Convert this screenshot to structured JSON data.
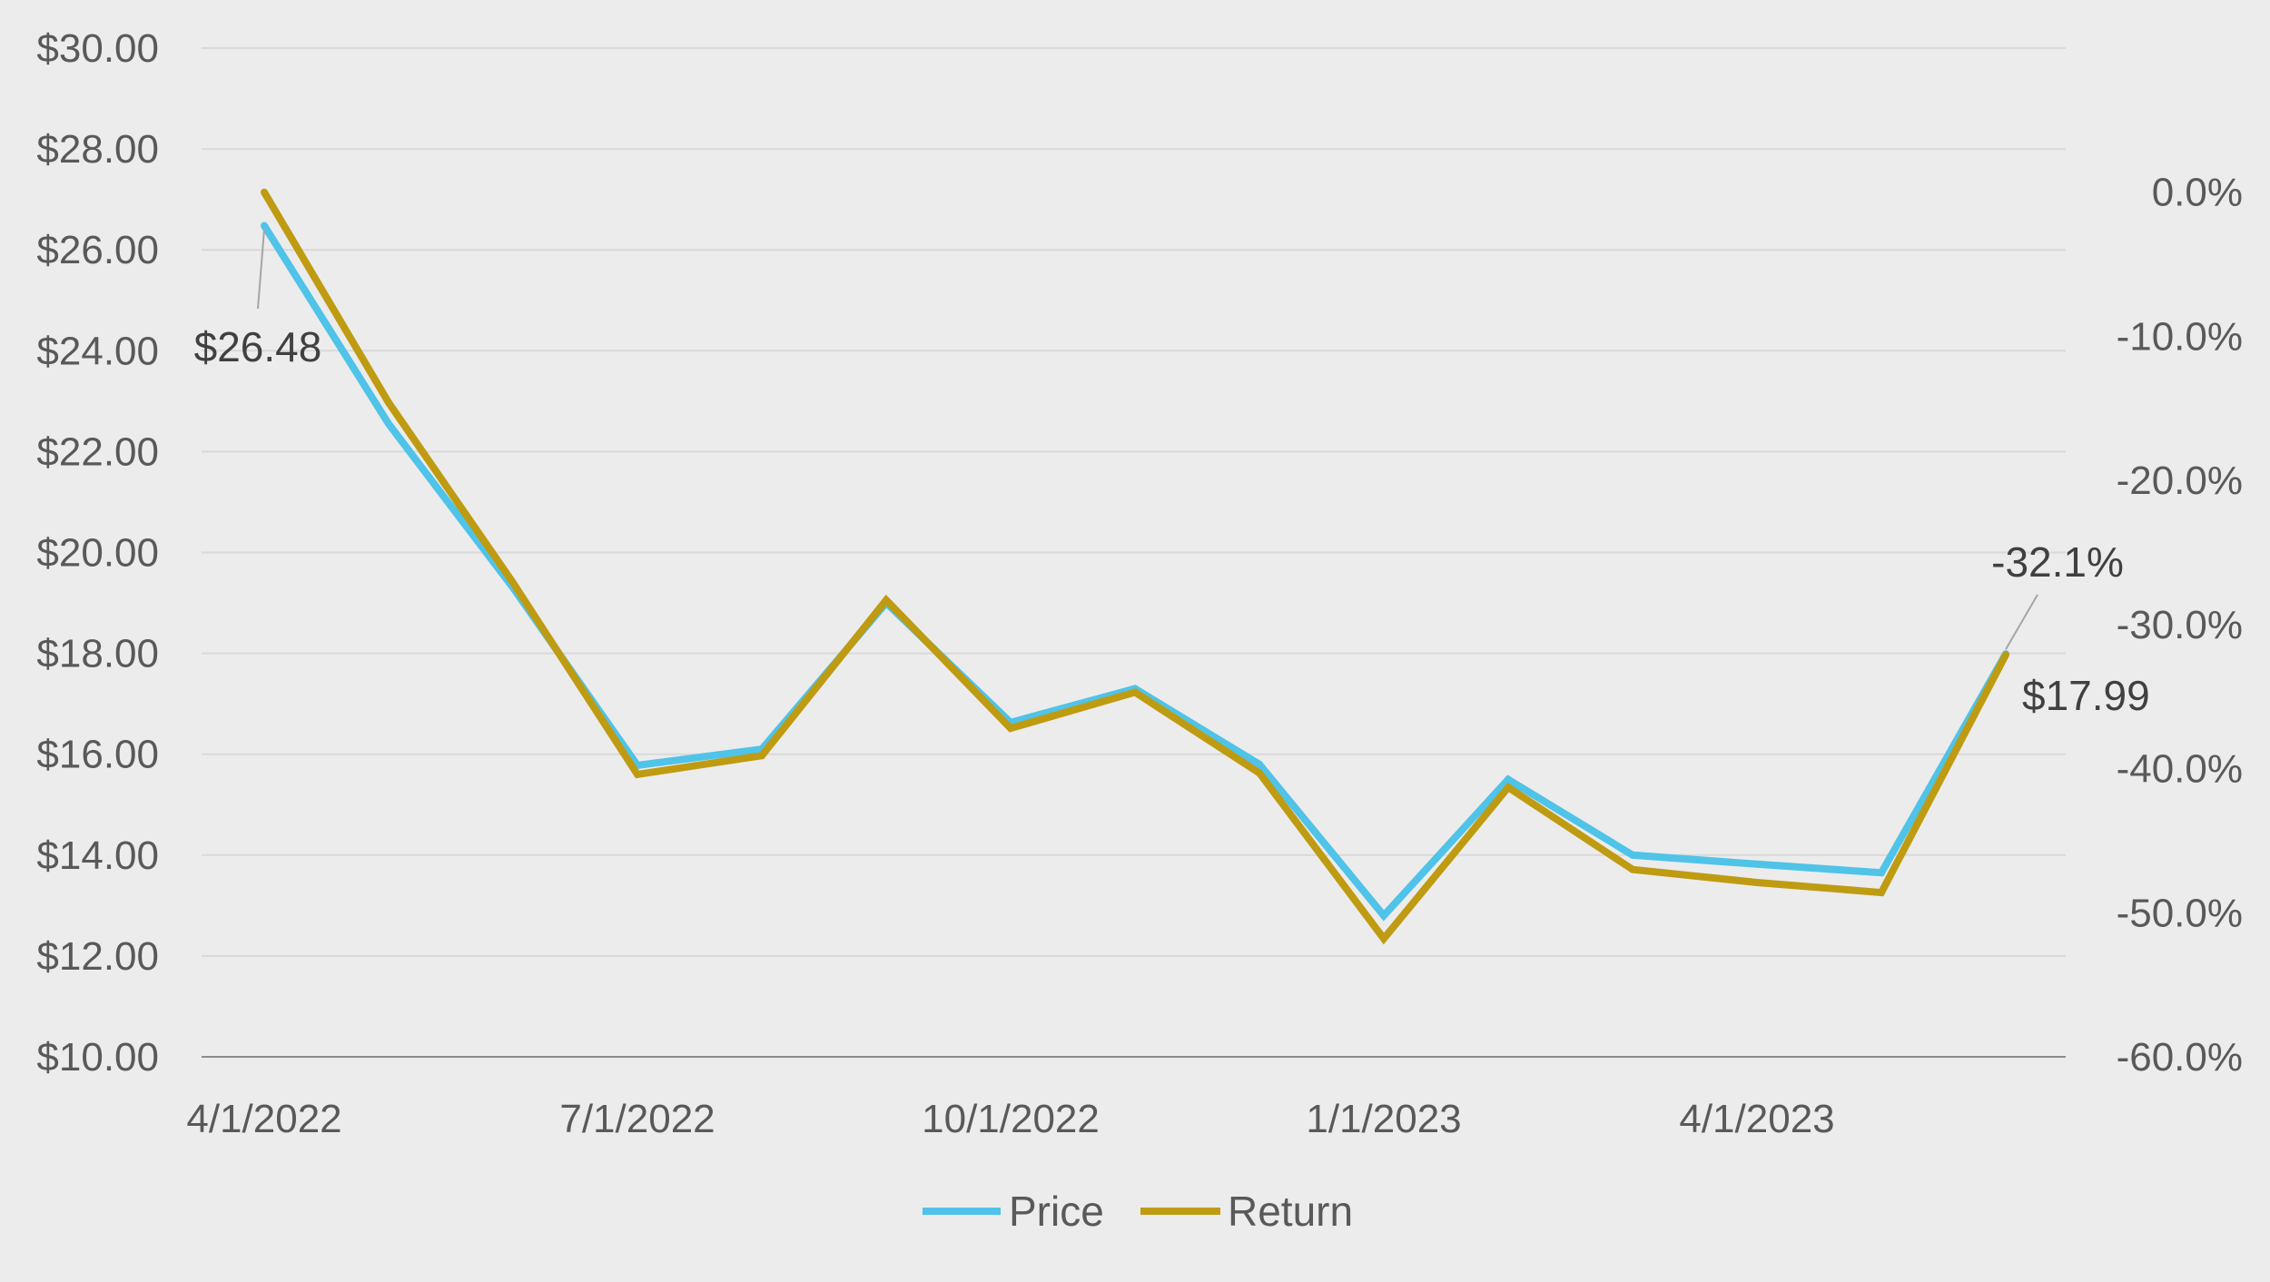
{
  "chart_data": {
    "type": "line",
    "x": [
      "4/1/2022",
      "5/1/2022",
      "6/1/2022",
      "7/1/2022",
      "8/1/2022",
      "9/1/2022",
      "10/1/2022",
      "11/1/2022",
      "12/1/2022",
      "1/1/2023",
      "2/1/2023",
      "3/1/2023",
      "4/1/2023",
      "5/1/2023",
      "6/1/2023"
    ],
    "x_tick_labels": [
      "4/1/2022",
      "7/1/2022",
      "10/1/2022",
      "1/1/2023",
      "4/1/2023"
    ],
    "series": [
      {
        "name": "Price",
        "axis": "left",
        "color": "#4fc3e8",
        "values": [
          26.48,
          22.55,
          19.3,
          15.78,
          16.1,
          19.0,
          16.63,
          17.3,
          15.8,
          12.8,
          15.5,
          14.0,
          13.82,
          13.65,
          17.99
        ]
      },
      {
        "name": "Return",
        "axis": "right",
        "color": "#bf9b12",
        "values": [
          0.0,
          -14.6,
          -27.1,
          -40.4,
          -39.1,
          -28.3,
          -37.2,
          -34.7,
          -40.3,
          -51.8,
          -41.3,
          -47.0,
          -47.9,
          -48.6,
          -32.1
        ]
      }
    ],
    "y_left": {
      "range": [
        10,
        30
      ],
      "ticks": [
        "$30.00",
        "$28.00",
        "$26.00",
        "$24.00",
        "$22.00",
        "$20.00",
        "$18.00",
        "$16.00",
        "$14.00",
        "$12.00",
        "$10.00"
      ]
    },
    "y_right": {
      "range": [
        -60,
        10
      ],
      "ticks": [
        "0.0%",
        "-10.0%",
        "-20.0%",
        "-30.0%",
        "-40.0%",
        "-50.0%",
        "-60.0%"
      ]
    },
    "annotations": {
      "price_start": "$26.48",
      "price_end": "$17.99",
      "return_end": "-32.1%"
    },
    "grid": true,
    "legend": "bottom"
  }
}
